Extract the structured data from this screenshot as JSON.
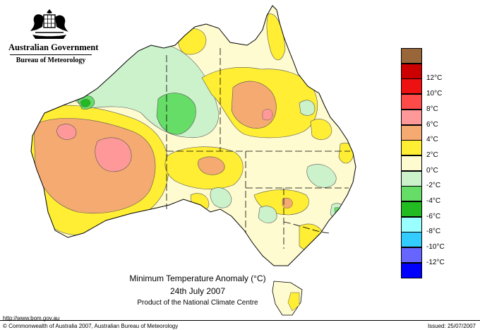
{
  "header": {
    "government": "Australian Government",
    "bureau": "Bureau of Meteorology"
  },
  "map": {
    "title": "Minimum Temperature Anomaly (°C)",
    "date": "24th July 2007",
    "credit": "Product of the National Climate Centre"
  },
  "legend": [
    {
      "label": "",
      "color": "#99663a"
    },
    {
      "label": "12°C",
      "color": "#cc0000"
    },
    {
      "label": "10°C",
      "color": "#ee1111"
    },
    {
      "label": "8°C",
      "color": "#ff4a4a"
    },
    {
      "label": "6°C",
      "color": "#ff9999"
    },
    {
      "label": "4°C",
      "color": "#f4aa70"
    },
    {
      "label": "2°C",
      "color": "#ffee33"
    },
    {
      "label": "0°C",
      "color": "#fffbd0"
    },
    {
      "label": "-2°C",
      "color": "#ccf2cc"
    },
    {
      "label": "-4°C",
      "color": "#66dd66"
    },
    {
      "label": "-6°C",
      "color": "#22bb22"
    },
    {
      "label": "-8°C",
      "color": "#99ffff"
    },
    {
      "label": "-10°C",
      "color": "#33ccff"
    },
    {
      "label": "-12°C",
      "color": "#6666ff"
    },
    {
      "label": "",
      "color": "#0000ff"
    }
  ],
  "footer": {
    "url": "http://www.bom.gov.au",
    "copyright": "© Commonwealth of Australia 2007, Australian Bureau of Meteorology",
    "issued": "Issued: 25/07/2007"
  }
}
